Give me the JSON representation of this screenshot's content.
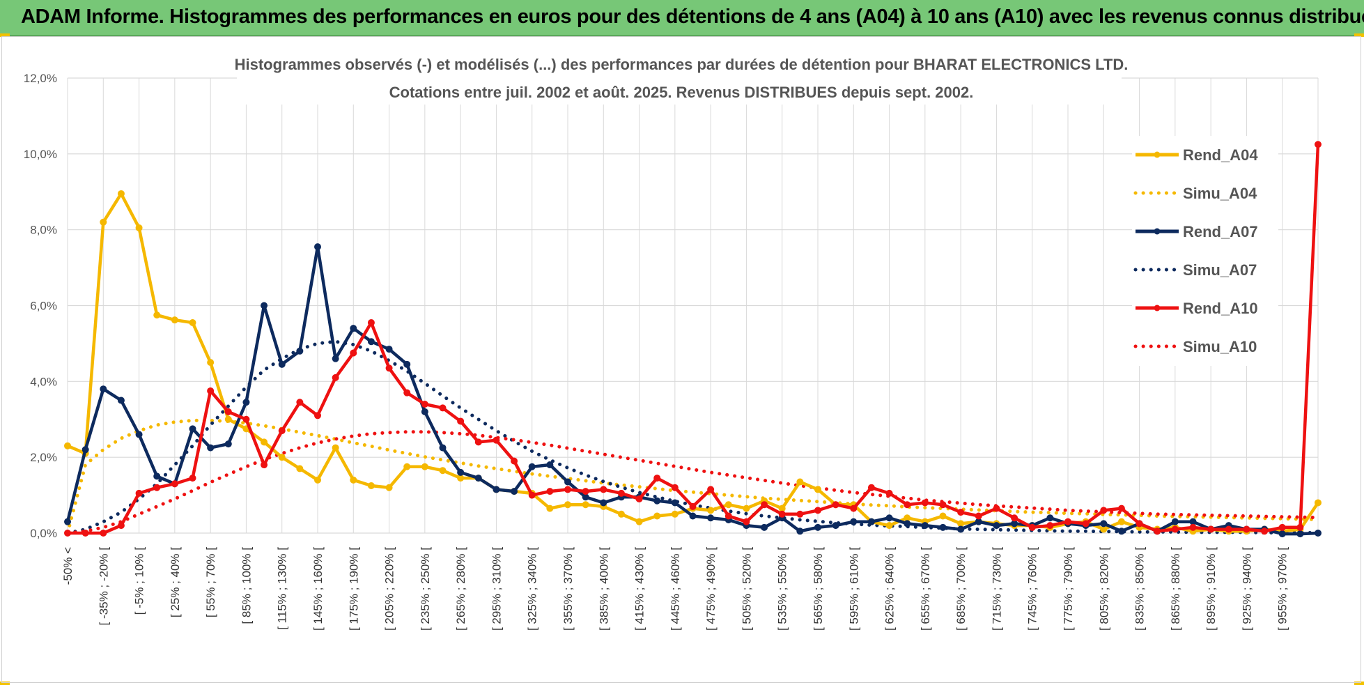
{
  "header": {
    "title": "ADAM Informe. Histogrammes des performances en euros pour des détentions de 4 ans (A04) à 10 ans (A10) avec les revenus connus distribués"
  },
  "colors": {
    "banner": "#77c777",
    "a04": "#f5b800",
    "a07": "#0d2a5e",
    "a10": "#ee1111",
    "grid": "#d9d9d9"
  },
  "chart_data": {
    "type": "line",
    "title": "Histogrammes observés (-) et modélisés (...) des performances par durées de détention pour BHARAT ELECTRONICS LTD.",
    "subtitle": "Cotations entre juil. 2002 et août. 2025. Revenus DISTRIBUES depuis sept. 2002.",
    "xlabel": "",
    "ylabel": "",
    "ylim": [
      0,
      12
    ],
    "y_ticks": [
      "0,0%",
      "2,0%",
      "4,0%",
      "6,0%",
      "8,0%",
      "10,0%",
      "12,0%"
    ],
    "grid": true,
    "legend_position": "right",
    "x_labels": [
      "-50% <",
      "[ -35% ; -20% [",
      "[ -5% ; 10% [",
      "[ 25% ; 40% [",
      "[ 55% ; 70% [",
      "[ 85% ; 100% [",
      "[ 115% ; 130% [",
      "[ 145% ; 160% [",
      "[ 175% ; 190% [",
      "[ 205% ; 220% [",
      "[ 235% ; 250% [",
      "[ 265% ; 280% [",
      "[ 295% ; 310% [",
      "[ 325% ; 340% [",
      "[ 355% ; 370% [",
      "[ 385% ; 400% [",
      "[ 415% ; 430% [",
      "[ 445% ; 460% [",
      "[ 475% ; 490% [",
      "[ 505% ; 520% [",
      "[ 535% ; 550% [",
      "[ 565% ; 580% [",
      "[ 595% ; 610% [",
      "[ 625% ; 640% [",
      "[ 655% ; 670% [",
      "[ 685% ; 700% [",
      "[ 715% ; 730% [",
      "[ 745% ; 760% [",
      "[ 775% ; 790% [",
      "[ 805% ; 820% [",
      "[ 835% ; 850% [",
      "[ 865% ; 880% [",
      "[ 895% ; 910% [",
      "[ 925% ; 940% [",
      "[ 955% ; 970% ["
    ],
    "series": [
      {
        "name": "Rend_A04",
        "style": "solid",
        "color": "#f5b800",
        "values": [
          2.3,
          2.1,
          8.2,
          8.95,
          8.05,
          5.75,
          5.62,
          5.55,
          4.5,
          3.0,
          2.75,
          2.4,
          2.0,
          1.7,
          1.4,
          2.25,
          1.4,
          1.25,
          1.2,
          1.75,
          1.75,
          1.65,
          1.45,
          1.45,
          1.15,
          1.1,
          1.05,
          0.65,
          0.75,
          0.75,
          0.7,
          0.5,
          0.3,
          0.45,
          0.5,
          0.65,
          0.6,
          0.75,
          0.65,
          0.85,
          0.65,
          1.35,
          1.15,
          0.75,
          0.75,
          0.3,
          0.2,
          0.4,
          0.3,
          0.45,
          0.25,
          0.3,
          0.25,
          0.2,
          0.2,
          0.15,
          0.25,
          0.3,
          0.1,
          0.3,
          0.15,
          0.1,
          0.15,
          0.05,
          0.1,
          0.05,
          0.05,
          0.1,
          0.05,
          0.1,
          0.8
        ]
      },
      {
        "name": "Simu_A04",
        "style": "dotted",
        "color": "#f5b800",
        "values": [
          0.0,
          1.8,
          2.2,
          2.5,
          2.7,
          2.85,
          2.93,
          2.97,
          2.97,
          2.95,
          2.9,
          2.83,
          2.75,
          2.66,
          2.57,
          2.48,
          2.38,
          2.29,
          2.19,
          2.1,
          2.01,
          1.93,
          1.85,
          1.77,
          1.7,
          1.63,
          1.56,
          1.5,
          1.44,
          1.38,
          1.32,
          1.27,
          1.22,
          1.17,
          1.12,
          1.08,
          1.04,
          1.0,
          0.96,
          0.92,
          0.89,
          0.86,
          0.83,
          0.8,
          0.77,
          0.74,
          0.72,
          0.69,
          0.67,
          0.65,
          0.63,
          0.61,
          0.59,
          0.57,
          0.55,
          0.54,
          0.52,
          0.51,
          0.49,
          0.48,
          0.47,
          0.45,
          0.44,
          0.43,
          0.42,
          0.41,
          0.4,
          0.39,
          0.38,
          0.37,
          0.36
        ]
      },
      {
        "name": "Rend_A07",
        "style": "solid",
        "color": "#0d2a5e",
        "values": [
          0.3,
          2.2,
          3.8,
          3.5,
          2.6,
          1.5,
          1.3,
          2.75,
          2.25,
          2.35,
          3.45,
          6.0,
          4.45,
          4.8,
          7.55,
          4.6,
          5.4,
          5.05,
          4.85,
          4.45,
          3.2,
          2.25,
          1.6,
          1.45,
          1.15,
          1.1,
          1.75,
          1.8,
          1.35,
          0.95,
          0.8,
          0.95,
          0.95,
          0.85,
          0.8,
          0.45,
          0.4,
          0.35,
          0.2,
          0.15,
          0.4,
          0.05,
          0.15,
          0.2,
          0.3,
          0.3,
          0.4,
          0.25,
          0.2,
          0.15,
          0.1,
          0.3,
          0.2,
          0.25,
          0.2,
          0.4,
          0.25,
          0.2,
          0.25,
          0.05,
          0.25,
          0.05,
          0.3,
          0.3,
          0.1,
          0.2,
          0.1,
          0.1,
          -0.02,
          -0.02,
          0.0
        ]
      },
      {
        "name": "Simu_A07",
        "style": "dotted",
        "color": "#0d2a5e",
        "values": [
          0.0,
          0.1,
          0.3,
          0.55,
          0.9,
          1.3,
          1.8,
          2.3,
          2.85,
          3.35,
          3.85,
          4.3,
          4.6,
          4.85,
          5.0,
          5.05,
          4.97,
          4.8,
          4.55,
          4.27,
          3.95,
          3.62,
          3.3,
          3.0,
          2.7,
          2.42,
          2.16,
          1.93,
          1.72,
          1.53,
          1.36,
          1.21,
          1.07,
          0.95,
          0.84,
          0.74,
          0.66,
          0.58,
          0.51,
          0.45,
          0.4,
          0.35,
          0.31,
          0.27,
          0.24,
          0.21,
          0.19,
          0.17,
          0.15,
          0.13,
          0.11,
          0.1,
          0.09,
          0.08,
          0.07,
          0.06,
          0.05,
          0.05,
          0.04,
          0.04,
          0.03,
          0.03,
          0.03,
          0.02,
          0.02,
          0.02,
          0.02,
          0.01,
          0.01,
          0.01,
          0.01
        ]
      },
      {
        "name": "Rend_A10",
        "style": "solid",
        "color": "#ee1111",
        "values": [
          0.0,
          0.0,
          0.0,
          0.2,
          1.05,
          1.2,
          1.3,
          1.45,
          3.75,
          3.2,
          3.0,
          1.8,
          2.7,
          3.45,
          3.1,
          4.1,
          4.75,
          5.55,
          4.35,
          3.7,
          3.4,
          3.3,
          2.95,
          2.4,
          2.45,
          1.9,
          1.0,
          1.1,
          1.15,
          1.1,
          1.15,
          1.05,
          0.9,
          1.45,
          1.2,
          0.7,
          1.15,
          0.45,
          0.3,
          0.75,
          0.5,
          0.5,
          0.6,
          0.75,
          0.65,
          1.2,
          1.05,
          0.75,
          0.8,
          0.75,
          0.55,
          0.45,
          0.65,
          0.4,
          0.15,
          0.2,
          0.3,
          0.25,
          0.6,
          0.65,
          0.25,
          0.05,
          0.1,
          0.15,
          0.1,
          0.1,
          0.1,
          0.05,
          0.15,
          0.15,
          10.25
        ]
      },
      {
        "name": "Simu_A10",
        "style": "dotted",
        "color": "#ee1111",
        "values": [
          0.0,
          0.05,
          0.15,
          0.3,
          0.5,
          0.7,
          0.9,
          1.12,
          1.34,
          1.55,
          1.75,
          1.94,
          2.1,
          2.25,
          2.38,
          2.48,
          2.56,
          2.62,
          2.65,
          2.67,
          2.67,
          2.65,
          2.62,
          2.58,
          2.52,
          2.46,
          2.39,
          2.32,
          2.24,
          2.16,
          2.08,
          2.0,
          1.92,
          1.84,
          1.76,
          1.68,
          1.6,
          1.53,
          1.46,
          1.39,
          1.32,
          1.25,
          1.19,
          1.13,
          1.07,
          1.02,
          0.97,
          0.92,
          0.87,
          0.83,
          0.79,
          0.75,
          0.72,
          0.69,
          0.66,
          0.63,
          0.6,
          0.58,
          0.56,
          0.54,
          0.52,
          0.5,
          0.49,
          0.48,
          0.47,
          0.46,
          0.45,
          0.44,
          0.43,
          0.42,
          0.41
        ]
      }
    ]
  }
}
